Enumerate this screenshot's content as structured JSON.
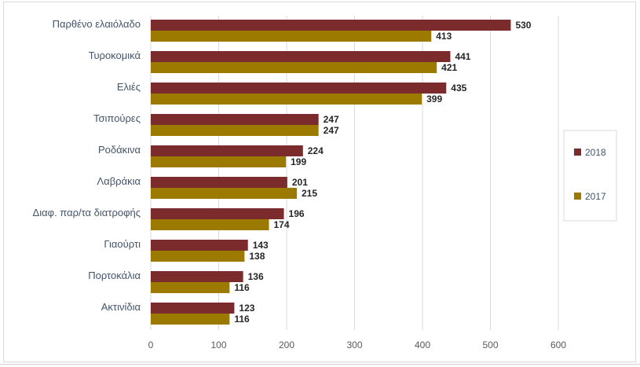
{
  "chart_data": {
    "type": "bar",
    "orientation": "horizontal",
    "categories": [
      "Παρθένο ελαιόλαδο",
      "Τυροκομικά",
      "Ελιές",
      "Τσιπούρες",
      "Ροδάκινα",
      "Λαβράκια",
      "Διαφ. παρ/τα διατροφής",
      "Γιαούρτι",
      "Πορτοκάλια",
      "Ακτινίδια"
    ],
    "series": [
      {
        "name": "2018",
        "color": "#7b2b2b",
        "values": [
          530,
          441,
          435,
          247,
          224,
          201,
          196,
          143,
          136,
          123
        ]
      },
      {
        "name": "2017",
        "color": "#9c7a00",
        "values": [
          413,
          421,
          399,
          247,
          199,
          215,
          174,
          138,
          116,
          116
        ]
      }
    ],
    "xlim": [
      0,
      600
    ],
    "xticks": [
      0,
      100,
      200,
      300,
      400,
      500,
      600
    ],
    "grid": true,
    "legend_position": "right"
  }
}
